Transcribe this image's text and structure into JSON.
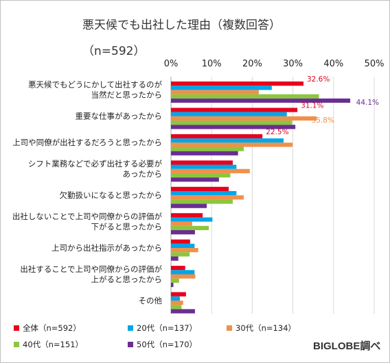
{
  "chart_data": {
    "type": "bar",
    "orientation": "horizontal",
    "title": "悪天候でも出社した理由（複数回答）",
    "subtitle": "（n=592）",
    "x_ticks": [
      "0%",
      "10%",
      "20%",
      "30%",
      "40%",
      "50%"
    ],
    "xlim": [
      0,
      50
    ],
    "grid": true,
    "legend_position": "bottom",
    "categories": [
      [
        "悪天候でもどうにかして出社するのが",
        "当然だと思ったから"
      ],
      [
        "重要な仕事があったから"
      ],
      [
        "上司や同僚が出社するだろうと思ったから"
      ],
      [
        "シフト業務などで必ず出社する必要が",
        "あったから"
      ],
      [
        "欠勤扱いになると思ったから"
      ],
      [
        "出社しないことで上司や同僚からの評価が",
        "下がると思ったから"
      ],
      [
        "上司から出社指示があったから"
      ],
      [
        "出社することで上司や同僚からの評価が",
        "上がると思ったから"
      ],
      [
        "その他"
      ]
    ],
    "series": [
      {
        "name": "全体（n=592）",
        "color": "#e8001c",
        "values": [
          32.6,
          31.1,
          22.5,
          15.2,
          14.2,
          7.8,
          4.7,
          3.5,
          3.7
        ]
      },
      {
        "name": "20代（n=137）",
        "color": "#00a6e8",
        "values": [
          24.8,
          28.5,
          27.7,
          16.1,
          16.1,
          10.2,
          5.8,
          5.8,
          2.2
        ]
      },
      {
        "name": "30代（n=134）",
        "color": "#f0904a",
        "values": [
          21.6,
          35.8,
          29.9,
          19.4,
          17.9,
          5.2,
          6.7,
          6.0,
          3.0
        ]
      },
      {
        "name": "40代（n=151）",
        "color": "#8cc63f",
        "values": [
          36.4,
          29.8,
          17.9,
          14.6,
          15.2,
          9.3,
          4.6,
          2.0,
          2.6
        ]
      },
      {
        "name": "50代（n=170）",
        "color": "#6a2e91",
        "values": [
          44.1,
          30.6,
          16.5,
          11.8,
          8.8,
          5.9,
          1.8,
          0.6,
          5.9
        ]
      }
    ],
    "annotations": [
      {
        "text": "32.6%",
        "category_index": 0,
        "series_index": 0,
        "color": "#e8001c"
      },
      {
        "text": "44.1%",
        "category_index": 0,
        "series_index": 4,
        "color": "#6a2e91"
      },
      {
        "text": "31.1%",
        "category_index": 1,
        "series_index": 0,
        "color": "#e8001c"
      },
      {
        "text": "35.8%",
        "category_index": 1,
        "series_index": 2,
        "color": "#f0904a"
      },
      {
        "text": "22.5%",
        "category_index": 2,
        "series_index": 0,
        "color": "#e8001c"
      }
    ]
  },
  "credit": "BIGLOBE調べ"
}
